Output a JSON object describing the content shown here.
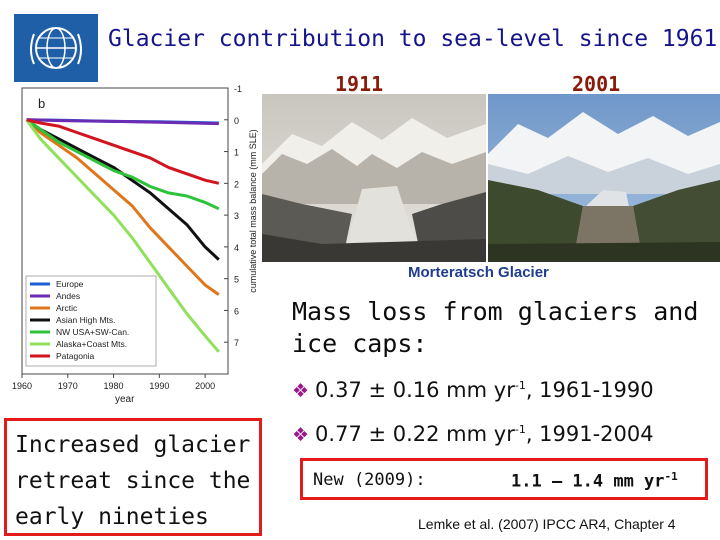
{
  "slide": {
    "title": "Glacier contribution to sea-level since 1961",
    "logo_icon": "wmo-logo-icon"
  },
  "photos": {
    "year_left": "1911",
    "year_right": "2001",
    "caption": "Morteratsch Glacier"
  },
  "text": {
    "mass_loss_heading": "Mass loss from glaciers and ice caps:",
    "bullet_1": "0.37 ± 0.16 mm yr",
    "bullet_1_sup": "-1",
    "bullet_1_period": ", 1961-1990",
    "bullet_2": "0.77 ± 0.22 mm yr",
    "bullet_2_sup": "-1",
    "bullet_2_period": ", 1991-2004",
    "retreat": "Increased glacier retreat since the early nineties",
    "new_label": "New (2009):",
    "new_value": "1.1 – 1.4 mm yr",
    "new_value_sup": "-1",
    "reference": "Lemke et al. (2007) IPCC AR4, Chapter 4"
  },
  "chart_data": {
    "type": "line",
    "panel_label": "b",
    "xlabel": "year",
    "ylabel": "cumulative total mass balance (mm SLE)",
    "x_ticks": [
      "1960",
      "1970",
      "1980",
      "1990",
      "2000"
    ],
    "y_ticks": [
      "-1",
      "0",
      "1",
      "2",
      "3",
      "4",
      "5",
      "6",
      "7"
    ],
    "xlim": [
      1960,
      2005
    ],
    "ylim": [
      -1,
      8
    ],
    "legend_position": "bottom-left",
    "series": [
      {
        "name": "Europe",
        "color": "#1f5fd6",
        "x": [
          1961,
          1970,
          1980,
          1990,
          2003
        ],
        "y": [
          0,
          0.02,
          0.05,
          0.06,
          0.1
        ]
      },
      {
        "name": "Andes",
        "color": "#6a2bb5",
        "x": [
          1961,
          1970,
          1980,
          1990,
          2003
        ],
        "y": [
          0,
          0.03,
          0.05,
          0.08,
          0.12
        ]
      },
      {
        "name": "Arctic",
        "color": "#e0761a",
        "x": [
          1961,
          1964,
          1968,
          1972,
          1976,
          1980,
          1984,
          1988,
          1992,
          1996,
          2000,
          2003
        ],
        "y": [
          0,
          0.4,
          0.8,
          1.2,
          1.7,
          2.2,
          2.7,
          3.4,
          4.0,
          4.6,
          5.2,
          5.5
        ]
      },
      {
        "name": "Asian High Mts.",
        "color": "#111111",
        "x": [
          1961,
          1964,
          1968,
          1972,
          1976,
          1980,
          1984,
          1988,
          1992,
          1996,
          2000,
          2003
        ],
        "y": [
          0,
          0.3,
          0.6,
          0.9,
          1.2,
          1.5,
          1.9,
          2.3,
          2.8,
          3.3,
          4.0,
          4.4
        ]
      },
      {
        "name": "NW USA+SW-Can.",
        "color": "#2ec43a",
        "x": [
          1961,
          1964,
          1968,
          1972,
          1976,
          1980,
          1984,
          1988,
          1992,
          1996,
          2000,
          2003
        ],
        "y": [
          0,
          0.3,
          0.7,
          1.0,
          1.3,
          1.6,
          1.8,
          2.1,
          2.3,
          2.4,
          2.6,
          2.8
        ]
      },
      {
        "name": "Alaska+Coast Mts.",
        "color": "#8fe05a",
        "x": [
          1961,
          1964,
          1968,
          1972,
          1976,
          1980,
          1984,
          1988,
          1992,
          1996,
          2000,
          2003
        ],
        "y": [
          0,
          0.6,
          1.2,
          1.8,
          2.4,
          3.0,
          3.7,
          4.5,
          5.3,
          6.1,
          6.8,
          7.3
        ]
      },
      {
        "name": "Patagonia",
        "color": "#d2141e",
        "x": [
          1961,
          1964,
          1968,
          1972,
          1976,
          1980,
          1984,
          1988,
          1992,
          1996,
          2000,
          2003
        ],
        "y": [
          0,
          0.1,
          0.2,
          0.4,
          0.6,
          0.8,
          1.0,
          1.2,
          1.5,
          1.7,
          1.9,
          2.0
        ]
      }
    ]
  }
}
